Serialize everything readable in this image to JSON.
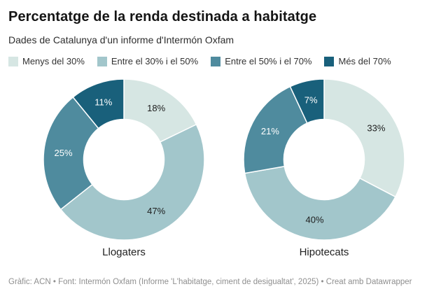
{
  "header": {
    "title": "Percentatge de la renda destinada a habitatge",
    "subtitle": "Dades de Catalunya d'un informe d'Intermón Oxfam"
  },
  "legend": {
    "items": [
      {
        "label": "Menys del 30%",
        "color": "#d6e6e3"
      },
      {
        "label": "Entre el 30% i el 50%",
        "color": "#a2c6cb"
      },
      {
        "label": "Entre el 50% i el 70%",
        "color": "#4f8b9e"
      },
      {
        "label": "Més del 70%",
        "color": "#19607b"
      }
    ]
  },
  "chart_data": {
    "type": "pie",
    "subtype": "donut",
    "title": "Percentatge de la renda destinada a habitatge",
    "subtitle": "Dades de Catalunya d'un informe d'Intermón Oxfam",
    "legend_position": "top",
    "categories": [
      "Menys del 30%",
      "Entre el 30% i el 50%",
      "Entre el 50% i el 70%",
      "Més del 70%"
    ],
    "colors": [
      "#d6e6e3",
      "#a2c6cb",
      "#4f8b9e",
      "#19607b"
    ],
    "label_text_colors": [
      "#1d1d1d",
      "#1d1d1d",
      "#ffffff",
      "#ffffff"
    ],
    "start_angle": 0,
    "direction": "clockwise",
    "donut_hole_ratio": 0.5,
    "series": [
      {
        "name": "Llogaters",
        "values": [
          18,
          47,
          25,
          11
        ],
        "labels": [
          "18%",
          "47%",
          "25%",
          "11%"
        ]
      },
      {
        "name": "Hipotecats",
        "values": [
          33,
          40,
          21,
          7
        ],
        "labels": [
          "33%",
          "40%",
          "21%",
          "7%"
        ]
      }
    ]
  },
  "footer": {
    "text": "Gràfic: ACN • Font: Intermón Oxfam (Informe 'L'habitatge, ciment de desigualtat', 2025) • Creat amb Datawrapper"
  }
}
